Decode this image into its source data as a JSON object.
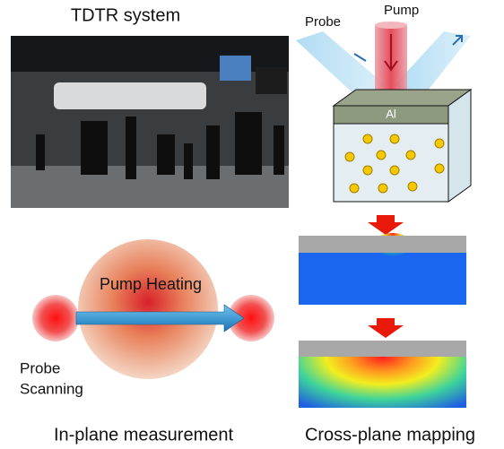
{
  "header": {
    "title": "TDTR system"
  },
  "schematic": {
    "probe_label": "Probe",
    "pump_label": "Pump",
    "layer_label": "Al"
  },
  "in_plane": {
    "heating_label": "Pump Heating",
    "probe_label": [
      "Probe",
      "Scanning"
    ],
    "caption": "In-plane measurement"
  },
  "cross_plane": {
    "caption": "Cross-plane mapping"
  }
}
